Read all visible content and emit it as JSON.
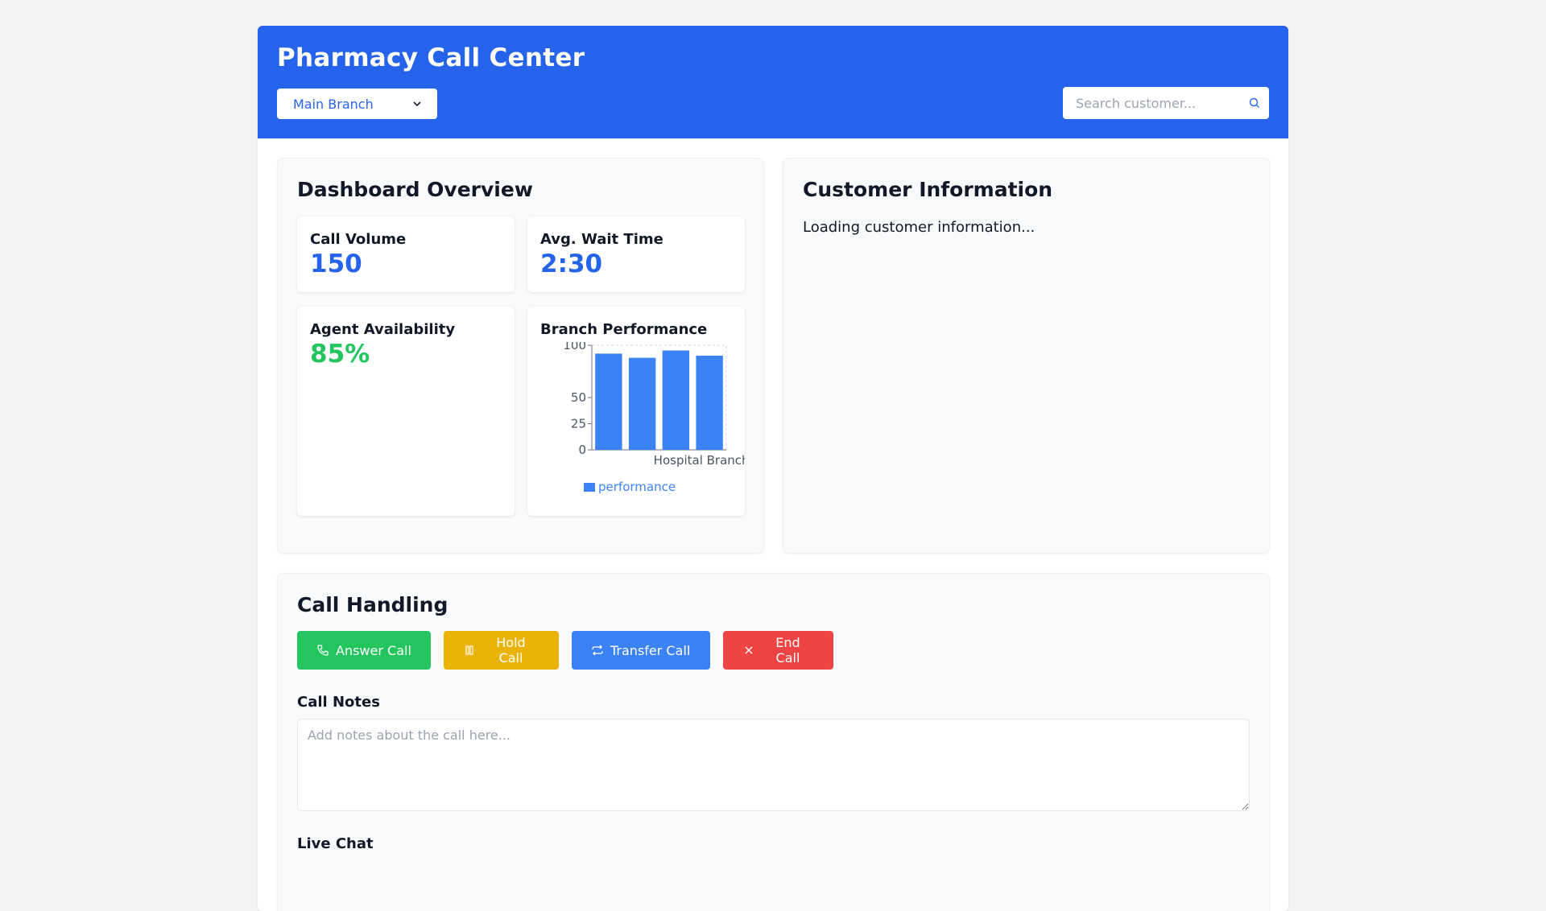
{
  "header": {
    "title": "Pharmacy Call Center",
    "branch_selected": "Main Branch",
    "search_placeholder": "Search customer..."
  },
  "dashboard": {
    "title": "Dashboard Overview",
    "cards": [
      {
        "label": "Call Volume",
        "value": "150"
      },
      {
        "label": "Avg. Wait Time",
        "value": "2:30"
      },
      {
        "label": "Agent Availability",
        "value": "85%"
      }
    ],
    "chart_title": "Branch Performance"
  },
  "chart_data": {
    "type": "bar",
    "categories": [
      "",
      "",
      "",
      "Hospital Branch"
    ],
    "series": [
      {
        "name": "performance",
        "values": [
          92,
          88,
          95,
          90
        ]
      }
    ],
    "yticks": [
      "0",
      "25",
      "50",
      "100"
    ],
    "ylim": [
      0,
      100
    ],
    "legend_position": "bottom",
    "colors": {
      "bar": "#3b82f6"
    }
  },
  "customer": {
    "title": "Customer Information",
    "loading_text": "Loading customer information..."
  },
  "calls": {
    "title": "Call Handling",
    "buttons": {
      "answer": "Answer Call",
      "hold": "Hold Call",
      "transfer": "Transfer Call",
      "end": "End Call"
    },
    "notes_label": "Call Notes",
    "notes_placeholder": "Add notes about the call here...",
    "chat_label": "Live Chat"
  },
  "colors": {
    "header": "#2563eb",
    "answer": "#22c55e",
    "hold": "#eab308",
    "transfer": "#3b82f6",
    "end": "#ef4444"
  }
}
